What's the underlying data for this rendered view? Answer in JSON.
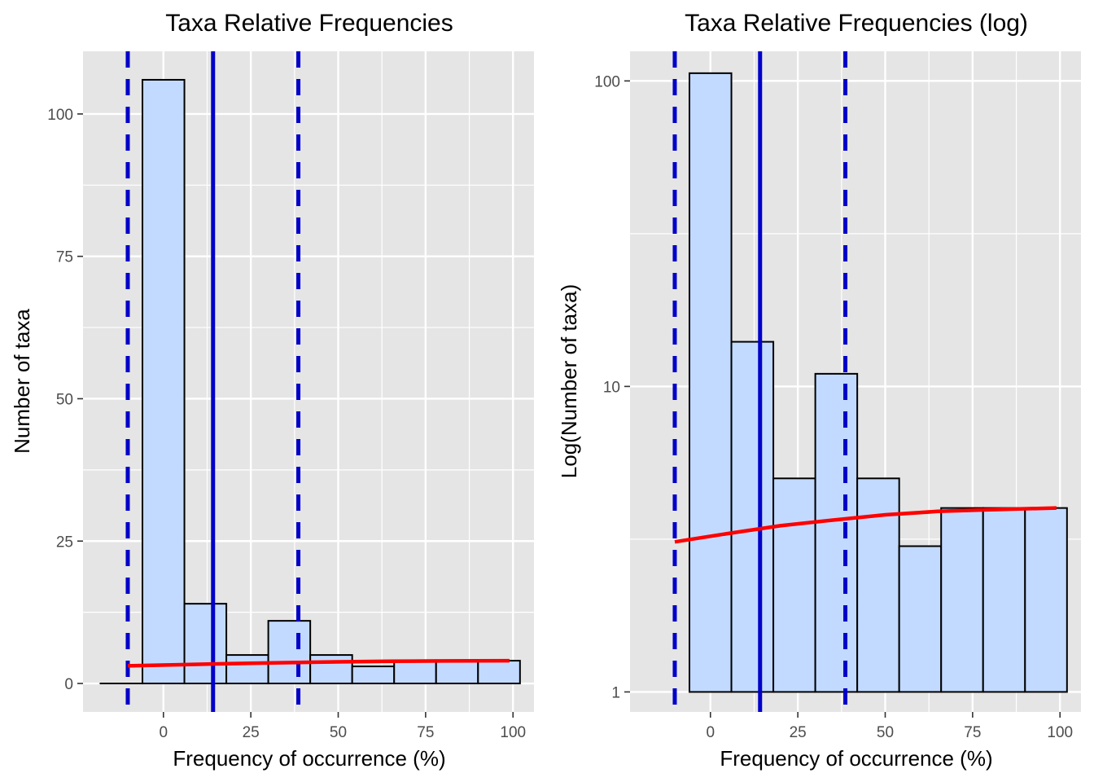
{
  "colors": {
    "panel_background": "#e5e5e5",
    "grid": "#ffffff",
    "bar_fill": "#c2daff",
    "bar_outline": "#000000",
    "reference_lines": "#0000c8",
    "trend_line": "#ff0000",
    "tick_label": "#4d4d4d"
  },
  "chart_data": [
    {
      "type": "bar",
      "title": "Taxa Relative Frequencies",
      "xlabel": "Frequency of occurrence (%)",
      "ylabel": "Number of taxa",
      "xlim": [
        -23,
        106
      ],
      "ylim": [
        -5,
        111
      ],
      "y_scale": "linear",
      "x_ticks": [
        0,
        25,
        50,
        75,
        100
      ],
      "y_ticks": [
        0,
        25,
        50,
        75,
        100
      ],
      "grid": true,
      "bins": [
        {
          "x0": -18,
          "x1": -6,
          "count": 0
        },
        {
          "x0": -6,
          "x1": 6,
          "count": 106
        },
        {
          "x0": 6,
          "x1": 18,
          "count": 14
        },
        {
          "x0": 18,
          "x1": 30,
          "count": 5
        },
        {
          "x0": 30,
          "x1": 42,
          "count": 11
        },
        {
          "x0": 42,
          "x1": 54,
          "count": 5
        },
        {
          "x0": 54,
          "x1": 66,
          "count": 3
        },
        {
          "x0": 66,
          "x1": 78,
          "count": 4
        },
        {
          "x0": 78,
          "x1": 90,
          "count": 4
        },
        {
          "x0": 90,
          "x1": 102,
          "count": 4
        }
      ],
      "mean_line": 14.2,
      "sd_lines": [
        -10.2,
        38.6
      ],
      "trend": {
        "x": [
          -10.2,
          5,
          20,
          35,
          50,
          65,
          80,
          99
        ],
        "y": [
          3.1,
          3.3,
          3.5,
          3.65,
          3.8,
          3.9,
          3.95,
          4.0
        ]
      }
    },
    {
      "type": "bar",
      "title": "Taxa Relative Frequencies (log)",
      "xlabel": "Frequency of occurrence (%)",
      "ylabel": "Log(Number of taxa)",
      "xlim": [
        -23,
        106
      ],
      "ylim": [
        0.86,
        125
      ],
      "y_scale": "log10",
      "x_ticks": [
        0,
        25,
        50,
        75,
        100
      ],
      "y_ticks": [
        1,
        10,
        100
      ],
      "grid": true,
      "bins": [
        {
          "x0": -6,
          "x1": 6,
          "count": 106
        },
        {
          "x0": 6,
          "x1": 18,
          "count": 14
        },
        {
          "x0": 18,
          "x1": 30,
          "count": 5
        },
        {
          "x0": 30,
          "x1": 42,
          "count": 11
        },
        {
          "x0": 42,
          "x1": 54,
          "count": 5
        },
        {
          "x0": 54,
          "x1": 66,
          "count": 3
        },
        {
          "x0": 66,
          "x1": 78,
          "count": 4
        },
        {
          "x0": 78,
          "x1": 90,
          "count": 4
        },
        {
          "x0": 90,
          "x1": 102,
          "count": 4
        }
      ],
      "mean_line": 14.2,
      "sd_lines": [
        -10.2,
        38.6
      ],
      "trend": {
        "x": [
          -10.2,
          5,
          20,
          35,
          50,
          65,
          80,
          99
        ],
        "y": [
          3.1,
          3.3,
          3.5,
          3.65,
          3.8,
          3.9,
          3.95,
          4.0
        ]
      }
    }
  ]
}
